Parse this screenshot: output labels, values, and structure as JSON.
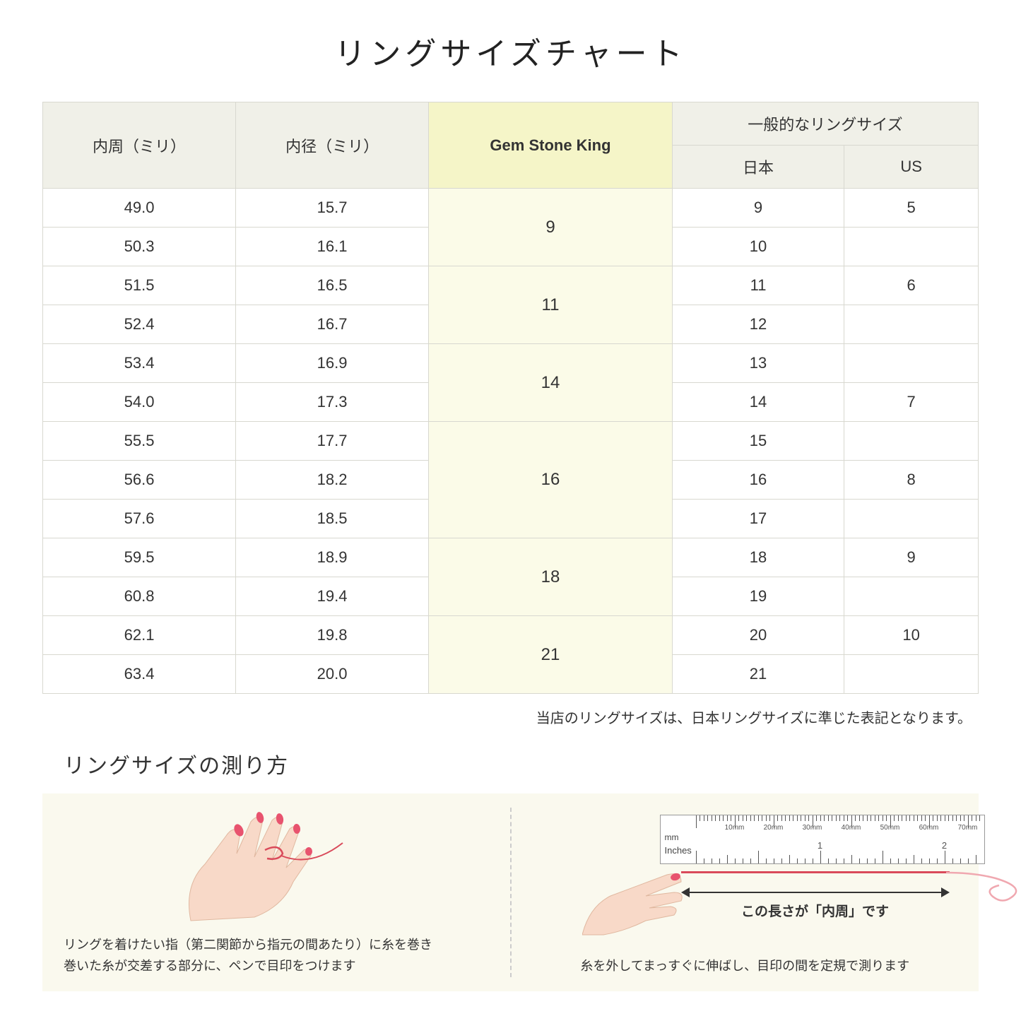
{
  "title": "リングサイズチャート",
  "headers": {
    "circumference": "内周（ミリ）",
    "diameter": "内径（ミリ）",
    "gsk": "Gem Stone King",
    "general": "一般的なリングサイズ",
    "japan": "日本",
    "us": "US"
  },
  "rows": [
    {
      "circ": "49.0",
      "diam": "15.7",
      "jp": "9",
      "us": "5"
    },
    {
      "circ": "50.3",
      "diam": "16.1",
      "jp": "10",
      "us": ""
    },
    {
      "circ": "51.5",
      "diam": "16.5",
      "jp": "11",
      "us": "6"
    },
    {
      "circ": "52.4",
      "diam": "16.7",
      "jp": "12",
      "us": ""
    },
    {
      "circ": "53.4",
      "diam": "16.9",
      "jp": "13",
      "us": ""
    },
    {
      "circ": "54.0",
      "diam": "17.3",
      "jp": "14",
      "us": "7"
    },
    {
      "circ": "55.5",
      "diam": "17.7",
      "jp": "15",
      "us": ""
    },
    {
      "circ": "56.6",
      "diam": "18.2",
      "jp": "16",
      "us": "8"
    },
    {
      "circ": "57.6",
      "diam": "18.5",
      "jp": "17",
      "us": ""
    },
    {
      "circ": "59.5",
      "diam": "18.9",
      "jp": "18",
      "us": "9"
    },
    {
      "circ": "60.8",
      "diam": "19.4",
      "jp": "19",
      "us": ""
    },
    {
      "circ": "62.1",
      "diam": "19.8",
      "jp": "20",
      "us": "10"
    },
    {
      "circ": "63.4",
      "diam": "20.0",
      "jp": "21",
      "us": ""
    }
  ],
  "gsk_groups": [
    {
      "size": "9",
      "span": 2
    },
    {
      "size": "11",
      "span": 2
    },
    {
      "size": "14",
      "span": 2
    },
    {
      "size": "16",
      "span": 3
    },
    {
      "size": "18",
      "span": 2
    },
    {
      "size": "21",
      "span": 2
    }
  ],
  "note": "当店のリングサイズは、日本リングサイズに準じた表記となります。",
  "howto_title": "リングサイズの測り方",
  "step1_text": "リングを着けたい指（第二関節から指元の間あたり）に糸を巻き\n巻いた糸が交差する部分に、ペンで目印をつけます",
  "step2_label": "この長さが「内周」です",
  "step2_text": "糸を外してまっすぐに伸ばし、目印の間を定規で測ります",
  "ruler": {
    "mm_label": "mm",
    "in_label": "Inches",
    "mm_marks": [
      "10mm",
      "20mm",
      "30mm",
      "40mm",
      "50mm",
      "60mm",
      "70mm"
    ],
    "in_marks": [
      "1",
      "2"
    ]
  },
  "colors": {
    "header_bg": "#f0f0e8",
    "gsk_header_bg": "#f5f5c8",
    "gsk_cell_bg": "#fbfbe8",
    "border": "#d8d8d0",
    "instruction_bg": "#faf9ee",
    "thread": "#d94a5a",
    "skin": "#f8d9c8",
    "nail": "#e8536e"
  }
}
